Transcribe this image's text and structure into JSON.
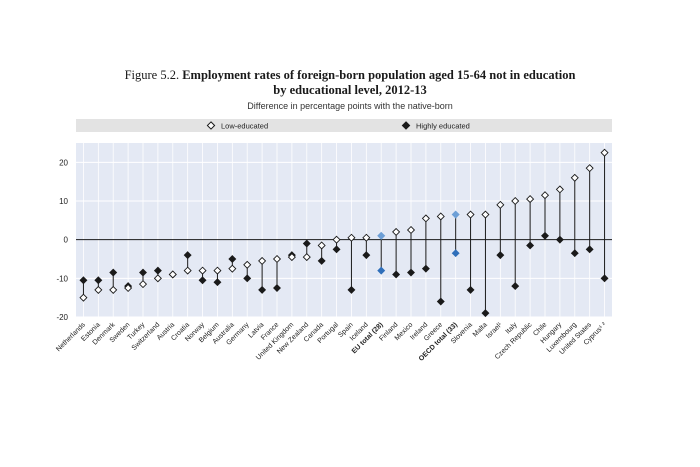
{
  "figure": {
    "label": "Figure 5.2.",
    "title_line1": "Employment rates of foreign-born population aged 15-64 not in education",
    "title_line2": "by educational level, 2012-13",
    "subtitle": "Difference in percentage points with the native-born"
  },
  "chart_data": {
    "type": "scatter",
    "subtype": "dumbbell",
    "title": "Employment rates of foreign-born population aged 15-64 not in education by educational level, 2012-13",
    "subtitle": "Difference in percentage points with the native-born",
    "xlabel": "",
    "ylabel": "",
    "ylim": [
      -20,
      25
    ],
    "yticks": [
      -20,
      -10,
      0,
      10,
      20
    ],
    "grid": true,
    "legend_position": "top",
    "colors": {
      "plot_bg": "#e4e9f4",
      "legend_bg": "#e3e3e3",
      "grid": "#ffffff",
      "marker": "#1a1a1a",
      "highlight": "#2f6fba",
      "highlight_light": "#6d9fd6"
    },
    "categories": [
      "Netherlands",
      "Estonia",
      "Denmark",
      "Sweden",
      "Turkey",
      "Switzerland",
      "Austria",
      "Croatia",
      "Norway",
      "Belgium",
      "Australia",
      "Germany",
      "Latvia",
      "France",
      "United Kingdom",
      "New Zealand",
      "Canada",
      "Portugal",
      "Spain",
      "Iceland",
      "EU total (28)",
      "Finland",
      "Mexico",
      "Ireland",
      "Greece",
      "OECD total (33)",
      "Slovenia",
      "Malta",
      "Israel¹",
      "Italy",
      "Czech Republic",
      "Chile",
      "Hungary",
      "Luxembourg",
      "United States",
      "Cyprus¹ ²"
    ],
    "highlight_categories": [
      "EU total (28)",
      "OECD total (33)"
    ],
    "series": [
      {
        "name": "Low-educated",
        "marker": "open-diamond",
        "values": [
          -15,
          -13,
          -13,
          -12.5,
          -11.5,
          -10,
          -9,
          -8,
          -8,
          -8,
          -7.5,
          -6.5,
          -5.5,
          -5,
          -4.5,
          -4.5,
          -1.5,
          0,
          0.5,
          0.5,
          1,
          2,
          2.5,
          5.5,
          6,
          6.5,
          6.5,
          6.5,
          9,
          10,
          10.5,
          11.5,
          13,
          16,
          18.5,
          22.5
        ]
      },
      {
        "name": "Highly educated",
        "marker": "filled-diamond",
        "values": [
          -10.5,
          -10.5,
          -8.5,
          -12,
          -8.5,
          -8,
          -9,
          -4,
          -10.5,
          -11,
          -5,
          -10,
          -13,
          -12.5,
          -4,
          -1,
          -5.5,
          -2.5,
          -13,
          -4,
          -8,
          -9,
          -8.5,
          -7.5,
          -16,
          -3.5,
          -13,
          -19,
          -4,
          -12,
          -1.5,
          1,
          0,
          -3.5,
          -2.5,
          -10
        ]
      }
    ]
  }
}
